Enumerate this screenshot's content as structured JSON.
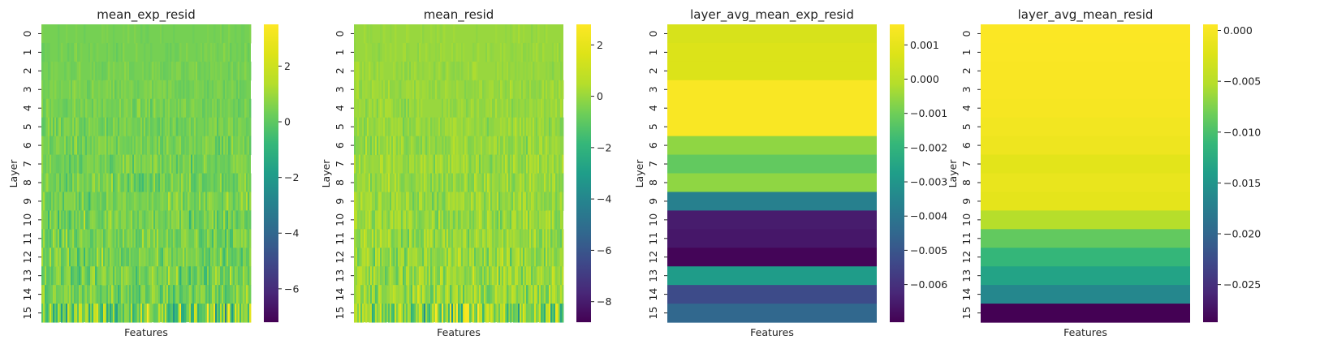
{
  "chart_data": [
    {
      "type": "heatmap",
      "title": "mean_exp_resid",
      "xlabel": "Features",
      "ylabel": "Layer",
      "y_ticks": [
        "0",
        "1",
        "2",
        "3",
        "4",
        "5",
        "6",
        "7",
        "8",
        "9",
        "10",
        "11",
        "12",
        "13",
        "14",
        "15"
      ],
      "colormap": "viridis",
      "colorbar": {
        "range": [
          -7.2,
          3.5
        ],
        "ticks": [
          2,
          0,
          -2,
          -4,
          -6
        ],
        "tick_labels": [
          "2",
          "0",
          "−2",
          "−4",
          "−6"
        ]
      },
      "pattern": "per-feature values near 0 across layers 0-14 with fine vertical striping; layer 15 highly variable",
      "base_level": 0.4
    },
    {
      "type": "heatmap",
      "title": "mean_resid",
      "xlabel": "Features",
      "ylabel": "Layer",
      "y_ticks": [
        "0",
        "1",
        "2",
        "3",
        "4",
        "5",
        "6",
        "7",
        "8",
        "9",
        "10",
        "11",
        "12",
        "13",
        "14",
        "15"
      ],
      "colormap": "viridis",
      "colorbar": {
        "range": [
          -8.8,
          2.8
        ],
        "ticks": [
          2,
          0,
          -2,
          -4,
          -6,
          -8
        ],
        "tick_labels": [
          "2",
          "0",
          "−2",
          "−4",
          "−6",
          "−8"
        ]
      },
      "pattern": "per-feature values near 0 across layers with fine vertical striping that increases with depth; layer 15 highly variable",
      "base_level": 0.0
    },
    {
      "type": "heatmap",
      "title": "layer_avg_mean_exp_resid",
      "xlabel": "Features",
      "ylabel": "Layer",
      "y_ticks": [
        "0",
        "1",
        "2",
        "3",
        "4",
        "5",
        "6",
        "7",
        "8",
        "9",
        "10",
        "11",
        "12",
        "13",
        "14",
        "15"
      ],
      "colormap": "viridis",
      "colorbar": {
        "range": [
          -0.0071,
          0.0016
        ],
        "ticks": [
          0.001,
          0.0,
          -0.001,
          -0.002,
          -0.003,
          -0.004,
          -0.005,
          -0.006
        ],
        "tick_labels": [
          "0.001",
          "0.000",
          "−0.001",
          "−0.002",
          "−0.003",
          "−0.004",
          "−0.005",
          "−0.006"
        ]
      },
      "values": [
        0.0006,
        0.0007,
        0.0007,
        0.0015,
        0.0015,
        0.0015,
        -0.0006,
        -0.0012,
        -0.0006,
        -0.0037,
        -0.0065,
        -0.0066,
        -0.007,
        -0.0028,
        -0.0053,
        -0.0045
      ]
    },
    {
      "type": "heatmap",
      "title": "layer_avg_mean_resid",
      "xlabel": "Features",
      "ylabel": "Layer",
      "y_ticks": [
        "0",
        "1",
        "2",
        "3",
        "4",
        "5",
        "6",
        "7",
        "8",
        "9",
        "10",
        "11",
        "12",
        "13",
        "14",
        "15"
      ],
      "colormap": "viridis",
      "colorbar": {
        "range": [
          -0.0287,
          0.0006
        ],
        "ticks": [
          0.0,
          -0.005,
          -0.01,
          -0.015,
          -0.02,
          -0.025
        ],
        "tick_labels": [
          "0.000",
          "−0.005",
          "−0.010",
          "−0.015",
          "−0.020",
          "−0.025"
        ]
      },
      "values": [
        0.0004,
        0.0003,
        0.0002,
        0.0001,
        0.0,
        -0.0004,
        -0.0008,
        -0.0018,
        -0.0012,
        -0.0016,
        -0.0052,
        -0.0088,
        -0.0112,
        -0.0135,
        -0.0165,
        -0.0287
      ]
    }
  ]
}
